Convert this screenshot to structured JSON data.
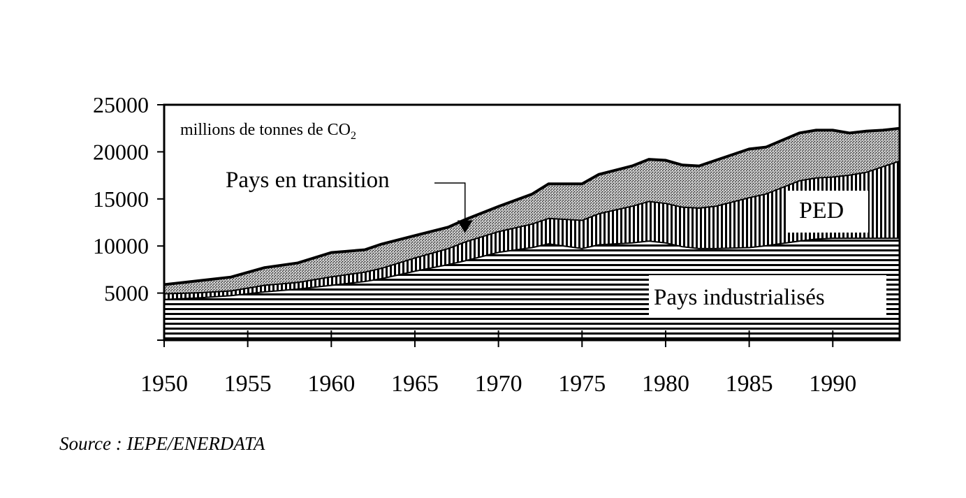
{
  "chart_data": {
    "type": "area",
    "stacked": true,
    "unit_label": "millions de tonnes de CO",
    "unit_subscript": "2",
    "x": [
      1950,
      1952,
      1954,
      1955,
      1956,
      1958,
      1960,
      1962,
      1963,
      1965,
      1967,
      1968,
      1970,
      1972,
      1973,
      1975,
      1976,
      1978,
      1979,
      1980,
      1981,
      1982,
      1983,
      1985,
      1986,
      1988,
      1989,
      1990,
      1991,
      1992,
      1993,
      1994
    ],
    "series": [
      {
        "name": "Pays industrialisés",
        "pattern": "horizontal-lines",
        "values": [
          4400,
          4550,
          4800,
          5000,
          5200,
          5500,
          5900,
          6300,
          6600,
          7400,
          8100,
          8500,
          9400,
          9900,
          10300,
          9800,
          10200,
          10400,
          10600,
          10400,
          10000,
          9800,
          9800,
          9900,
          10100,
          10600,
          10800,
          10900,
          10900,
          10900,
          10900,
          10900
        ]
      },
      {
        "name": "PED",
        "pattern": "vertical-lines",
        "values": [
          600,
          550,
          500,
          600,
          700,
          700,
          900,
          1000,
          1100,
          1400,
          1700,
          2000,
          2200,
          2500,
          2700,
          3000,
          3300,
          3900,
          4200,
          4200,
          4200,
          4300,
          4500,
          5300,
          5500,
          6400,
          6500,
          6500,
          6700,
          7000,
          7600,
          8200
        ]
      },
      {
        "name": "Pays en transition",
        "pattern": "stipple",
        "values": [
          900,
          1200,
          1400,
          1600,
          1800,
          2000,
          2500,
          2300,
          2500,
          2300,
          2200,
          2300,
          2600,
          3100,
          3600,
          3800,
          4100,
          4200,
          4400,
          4500,
          4400,
          4400,
          4800,
          5100,
          4900,
          5000,
          5000,
          4900,
          4400,
          4300,
          3800,
          3400
        ]
      }
    ],
    "ylim": [
      0,
      25000
    ],
    "xlim": [
      1950,
      1994
    ],
    "yticks": [
      "0",
      "5000",
      "10000",
      "15000",
      "20000",
      "25000"
    ],
    "xticks": [
      "1950",
      "1955",
      "1960",
      "1965",
      "1970",
      "1975",
      "1980",
      "1985",
      "1990"
    ],
    "annotations": {
      "transition_label": "Pays en transition",
      "ped_label": "PED",
      "industrial_label": "Pays industrialisés",
      "transition_arrow_year": 1968
    },
    "grid": false,
    "source": "Source : IEPE/ENERDATA"
  }
}
